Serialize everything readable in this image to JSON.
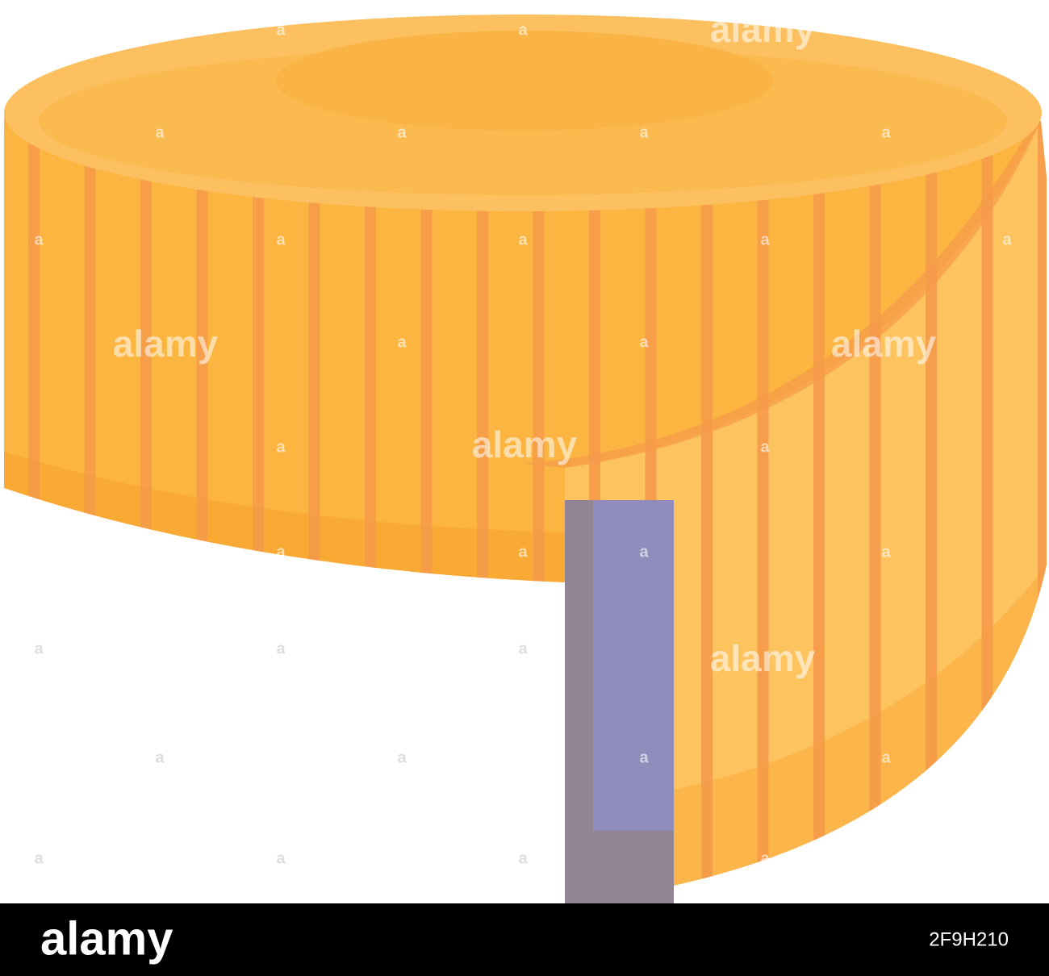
{
  "watermark": {
    "word": "alamy",
    "mark": "a"
  },
  "footer": {
    "logo": "alamy",
    "id": "2F9H210"
  }
}
